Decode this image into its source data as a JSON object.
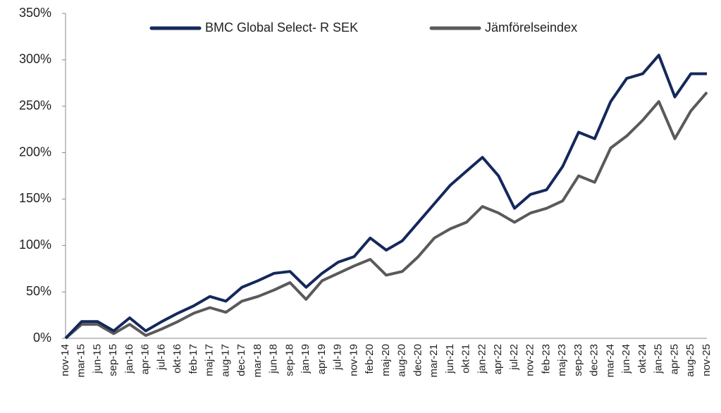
{
  "chart_data": {
    "type": "line",
    "categories": [
      "nov-14",
      "mar-15",
      "jun-15",
      "sep-15",
      "jan-16",
      "apr-16",
      "jul-16",
      "okt-16",
      "feb-17",
      "maj-17",
      "aug-17",
      "dec-17",
      "mar-18",
      "jun-18",
      "sep-18",
      "jan-19",
      "apr-19",
      "jul-19",
      "nov-19",
      "feb-20",
      "maj-20",
      "aug-20",
      "dec-20",
      "mar-21",
      "jun-21",
      "okt-21",
      "jan-22",
      "apr-22",
      "jul-22",
      "nov-22",
      "feb-23",
      "maj-23",
      "sep-23",
      "dec-23",
      "mar-24",
      "jun-24",
      "okt-24",
      "jan-25",
      "apr-25",
      "aug-25",
      "nov-25"
    ],
    "series": [
      {
        "name": "BMC Global Select- R SEK",
        "color": "#14285a",
        "values": [
          0,
          18,
          18,
          8,
          22,
          8,
          18,
          27,
          35,
          45,
          40,
          55,
          62,
          70,
          72,
          55,
          70,
          82,
          88,
          108,
          95,
          105,
          125,
          145,
          165,
          180,
          195,
          175,
          140,
          155,
          160,
          185,
          222,
          215,
          255,
          280,
          285,
          305,
          260,
          285,
          285
        ]
      },
      {
        "name": "Jämförelseindex",
        "color": "#5a5a5a",
        "values": [
          0,
          15,
          15,
          5,
          15,
          3,
          10,
          18,
          27,
          33,
          28,
          40,
          45,
          52,
          60,
          42,
          62,
          70,
          78,
          85,
          68,
          72,
          88,
          108,
          118,
          125,
          142,
          135,
          125,
          135,
          140,
          148,
          175,
          168,
          205,
          218,
          235,
          255,
          215,
          245,
          265
        ]
      }
    ],
    "ylim": [
      0,
      350
    ],
    "yticks": [
      {
        "value": 0,
        "label": "0%"
      },
      {
        "value": 50,
        "label": "50%"
      },
      {
        "value": 100,
        "label": "100%"
      },
      {
        "value": 150,
        "label": "150%"
      },
      {
        "value": 200,
        "label": "200%"
      },
      {
        "value": 250,
        "label": "250%"
      },
      {
        "value": 300,
        "label": "300%"
      },
      {
        "value": 350,
        "label": "350%"
      }
    ],
    "legend": "top"
  }
}
